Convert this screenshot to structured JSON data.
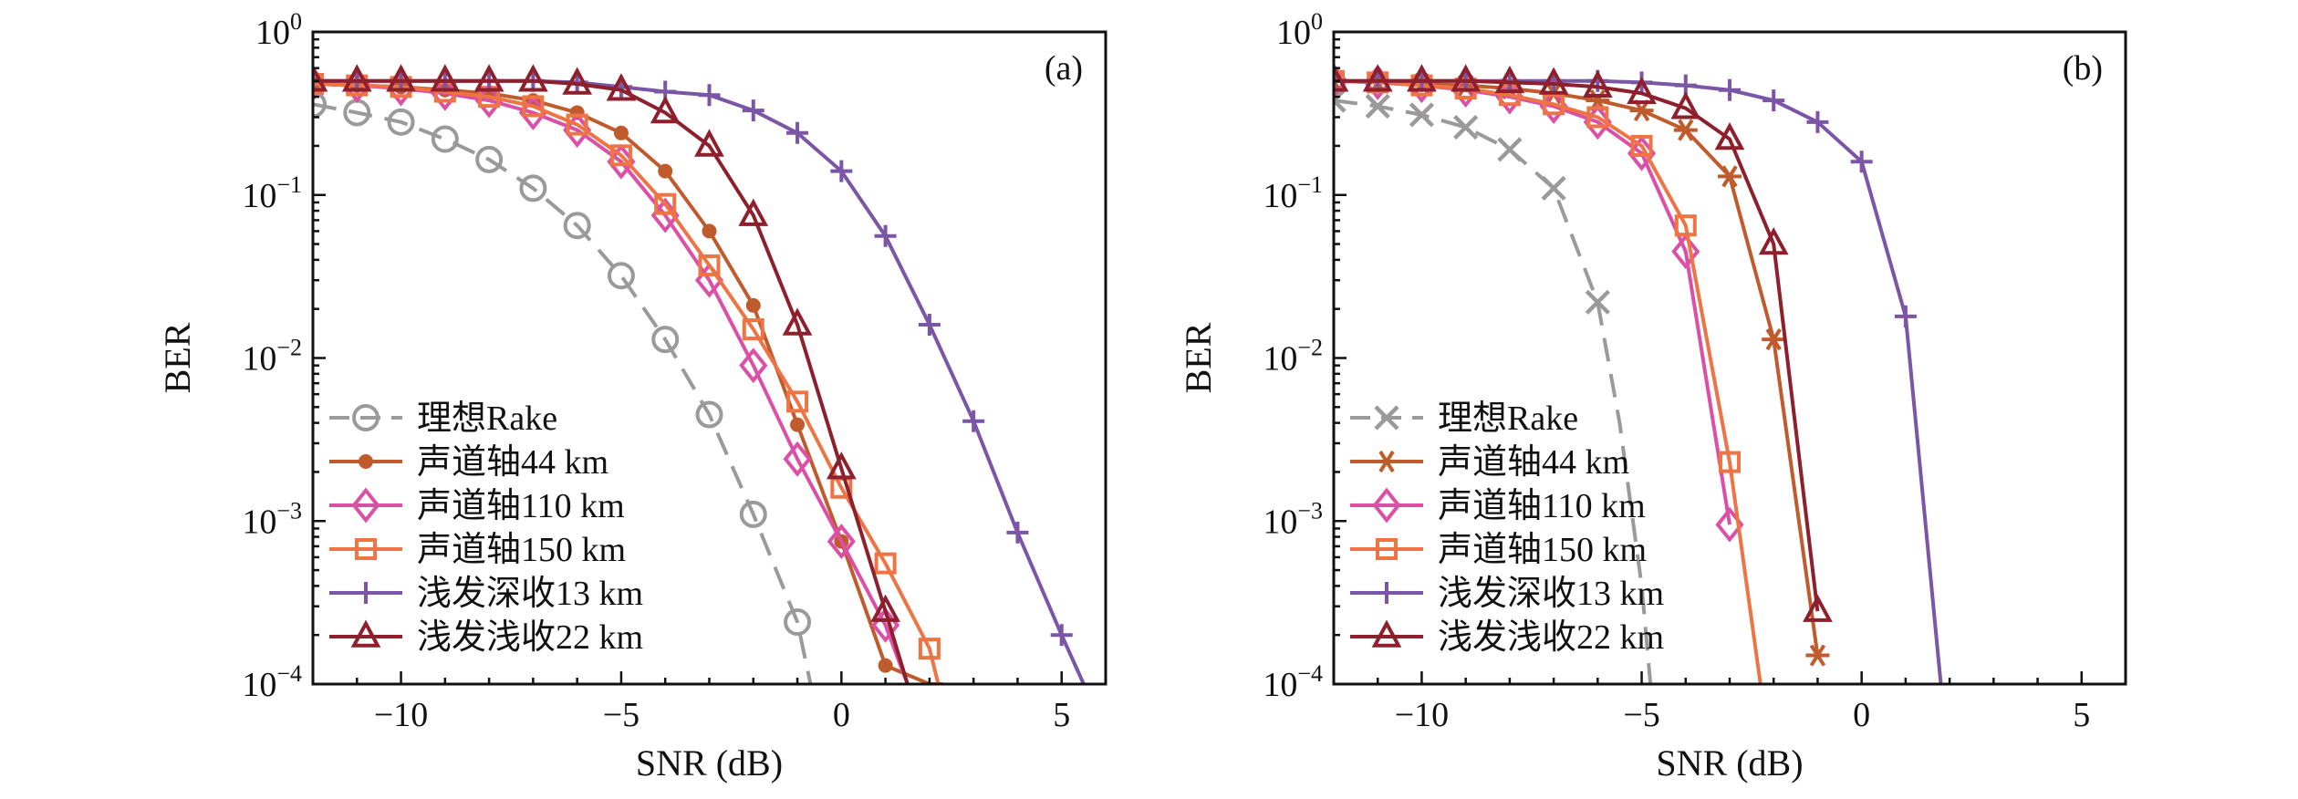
{
  "chart_data": [
    {
      "type": "line",
      "panel_label": "(a)",
      "xlabel": "SNR (dB)",
      "ylabel": "BER",
      "xlim": [
        -12,
        6
      ],
      "ylim": [
        0.0001,
        1
      ],
      "yscale": "log",
      "xticks": [
        -10,
        -5,
        0,
        5
      ],
      "xtick_labels": [
        "−10",
        "−5",
        "0",
        "5"
      ],
      "yticks": [
        0.0001,
        0.001,
        0.01,
        0.1,
        1
      ],
      "ytick_labels": [
        {
          "base": "10",
          "exp": "−4"
        },
        {
          "base": "10",
          "exp": "−3"
        },
        {
          "base": "10",
          "exp": "−2"
        },
        {
          "base": "10",
          "exp": "−1"
        },
        {
          "base": "10",
          "exp": "0"
        }
      ],
      "legend_position": "lower-left",
      "grid": false,
      "series": [
        {
          "name": "理想Rake",
          "color": "#9a9a9a",
          "dash": "dashed",
          "marker": "circle",
          "x": [
            -12,
            -11,
            -10,
            -9,
            -8,
            -7,
            -6,
            -5,
            -4,
            -3,
            -2,
            -1,
            -0.7
          ],
          "y": [
            0.36,
            0.32,
            0.28,
            0.22,
            0.165,
            0.11,
            0.065,
            0.032,
            0.013,
            0.0045,
            0.0011,
            0.00024,
            0.0001
          ],
          "marker_count": 12
        },
        {
          "name": "声道轴44 km",
          "color": "#c05b2d",
          "dash": "solid",
          "marker": "dot",
          "x": [
            -12,
            -11,
            -10,
            -9,
            -8,
            -7,
            -6,
            -5,
            -4,
            -3,
            -2,
            -1,
            0,
            1,
            2,
            2.3
          ],
          "y": [
            0.48,
            0.47,
            0.46,
            0.44,
            0.42,
            0.38,
            0.32,
            0.24,
            0.14,
            0.06,
            0.021,
            0.0039,
            0.00075,
            0.00013,
            0.0001,
            0.0001
          ],
          "marker_count": 14
        },
        {
          "name": "声道轴110 km",
          "color": "#dc4fa6",
          "dash": "solid",
          "marker": "diamond",
          "x": [
            -12,
            -11,
            -10,
            -9,
            -8,
            -7,
            -6,
            -5,
            -4,
            -3,
            -2,
            -1,
            0,
            1,
            1.5
          ],
          "y": [
            0.48,
            0.47,
            0.45,
            0.42,
            0.38,
            0.32,
            0.25,
            0.16,
            0.075,
            0.03,
            0.009,
            0.0024,
            0.00075,
            0.00023,
            0.0001
          ],
          "marker_count": 14
        },
        {
          "name": "声道轴150 km",
          "color": "#ee7444",
          "dash": "solid",
          "marker": "square",
          "x": [
            -12,
            -11,
            -10,
            -9,
            -8,
            -7,
            -6,
            -5,
            -4,
            -3,
            -2,
            -1,
            0,
            1,
            2,
            2.2
          ],
          "y": [
            0.48,
            0.47,
            0.46,
            0.43,
            0.4,
            0.35,
            0.27,
            0.175,
            0.088,
            0.037,
            0.015,
            0.0054,
            0.0016,
            0.00055,
            0.000165,
            0.0001
          ],
          "marker_count": 15
        },
        {
          "name": "浅发深收13 km",
          "color": "#7b55a6",
          "dash": "solid",
          "marker": "plus",
          "x": [
            -12,
            -11,
            -10,
            -9,
            -8,
            -7,
            -6,
            -5,
            -4,
            -3,
            -2,
            -1,
            0,
            1,
            2,
            3,
            4,
            5,
            5.5
          ],
          "y": [
            0.5,
            0.5,
            0.5,
            0.5,
            0.5,
            0.5,
            0.49,
            0.46,
            0.43,
            0.41,
            0.33,
            0.24,
            0.14,
            0.056,
            0.016,
            0.0041,
            0.00085,
            0.0002,
            0.0001
          ],
          "marker_count": 18
        },
        {
          "name": "浅发浅收22 km",
          "color": "#8e1f2d",
          "dash": "solid",
          "marker": "triangle",
          "x": [
            -12,
            -11,
            -10,
            -9,
            -8,
            -7,
            -6,
            -5,
            -4,
            -3,
            -2,
            -1,
            0,
            1,
            1.5
          ],
          "y": [
            0.5,
            0.5,
            0.5,
            0.5,
            0.5,
            0.5,
            0.48,
            0.44,
            0.32,
            0.2,
            0.075,
            0.016,
            0.0021,
            0.00028,
            0.0001
          ],
          "marker_count": 14
        }
      ]
    },
    {
      "type": "line",
      "panel_label": "(b)",
      "xlabel": "SNR (dB)",
      "ylabel": "BER",
      "xlim": [
        -12,
        6
      ],
      "ylim": [
        0.0001,
        1
      ],
      "yscale": "log",
      "xticks": [
        -10,
        -5,
        0,
        5
      ],
      "xtick_labels": [
        "−10",
        "−5",
        "0",
        "5"
      ],
      "yticks": [
        0.0001,
        0.001,
        0.01,
        0.1,
        1
      ],
      "ytick_labels": [
        {
          "base": "10",
          "exp": "−4"
        },
        {
          "base": "10",
          "exp": "−3"
        },
        {
          "base": "10",
          "exp": "−2"
        },
        {
          "base": "10",
          "exp": "−1"
        },
        {
          "base": "10",
          "exp": "0"
        }
      ],
      "legend_position": "lower-left",
      "grid": false,
      "series": [
        {
          "name": "理想Rake",
          "color": "#9a9a9a",
          "dash": "dashed",
          "marker": "x",
          "x": [
            -12,
            -11,
            -10,
            -9,
            -8,
            -7,
            -6,
            -5.5,
            -5,
            -4.8
          ],
          "y": [
            0.38,
            0.35,
            0.31,
            0.26,
            0.19,
            0.11,
            0.022,
            0.004,
            0.0004,
            0.0001
          ],
          "marker_count": 7
        },
        {
          "name": "声道轴44 km",
          "color": "#c05b2d",
          "dash": "solid",
          "marker": "asterisk",
          "x": [
            -12,
            -11,
            -10,
            -9,
            -8,
            -7,
            -6,
            -5,
            -4,
            -3,
            -2,
            -1
          ],
          "y": [
            0.5,
            0.49,
            0.48,
            0.47,
            0.45,
            0.42,
            0.38,
            0.33,
            0.25,
            0.13,
            0.013,
            0.00015
          ],
          "marker_count": 12
        },
        {
          "name": "声道轴110 km",
          "color": "#dc4fa6",
          "dash": "solid",
          "marker": "diamond",
          "x": [
            -12,
            -11,
            -10,
            -9,
            -8,
            -7,
            -6,
            -5,
            -4,
            -3
          ],
          "y": [
            0.5,
            0.49,
            0.47,
            0.44,
            0.4,
            0.35,
            0.28,
            0.18,
            0.045,
            0.00095
          ],
          "marker_count": 10
        },
        {
          "name": "声道轴150 km",
          "color": "#ee7444",
          "dash": "solid",
          "marker": "square",
          "x": [
            -12,
            -11,
            -10,
            -9,
            -8,
            -7,
            -6,
            -5,
            -4,
            -3,
            -2.3
          ],
          "y": [
            0.5,
            0.49,
            0.47,
            0.45,
            0.41,
            0.36,
            0.3,
            0.2,
            0.065,
            0.0023,
            0.0001
          ],
          "marker_count": 10
        },
        {
          "name": "浅发深收13 km",
          "color": "#7b55a6",
          "dash": "solid",
          "marker": "plus",
          "x": [
            -12,
            -11,
            -10,
            -9,
            -8,
            -7,
            -6,
            -5,
            -4,
            -3,
            -2,
            -1,
            0,
            1,
            1.8
          ],
          "y": [
            0.5,
            0.5,
            0.5,
            0.5,
            0.5,
            0.5,
            0.5,
            0.49,
            0.47,
            0.44,
            0.38,
            0.28,
            0.16,
            0.018,
            0.0001
          ],
          "marker_count": 14
        },
        {
          "name": "浅发浅收22 km",
          "color": "#8e1f2d",
          "dash": "solid",
          "marker": "triangle",
          "x": [
            -12,
            -11,
            -10,
            -9,
            -8,
            -7,
            -6,
            -5,
            -4,
            -3,
            -2,
            -1
          ],
          "y": [
            0.5,
            0.5,
            0.5,
            0.5,
            0.49,
            0.48,
            0.46,
            0.42,
            0.34,
            0.22,
            0.05,
            0.00028
          ],
          "marker_count": 12
        }
      ]
    }
  ]
}
